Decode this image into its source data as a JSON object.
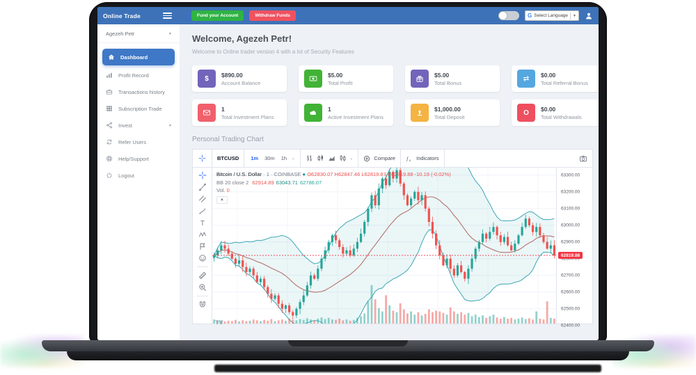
{
  "navbar": {
    "brand": "Online Trade",
    "fund_button": "Fund your Account",
    "withdraw_button": "Withdraw Funds",
    "language": {
      "logo": "G",
      "label": "Select Language"
    }
  },
  "sidebar": {
    "user": "Agezeh Petr",
    "items": [
      {
        "label": "Dashboard",
        "icon": "home",
        "active": true
      },
      {
        "label": "Profit Record",
        "icon": "chart-bars",
        "active": false
      },
      {
        "label": "Transactions history",
        "icon": "briefcase",
        "active": false
      },
      {
        "label": "Subscription Trade",
        "icon": "grid",
        "active": false
      },
      {
        "label": "Invest",
        "icon": "sitemap",
        "active": false,
        "has_submenu": true
      },
      {
        "label": "Refer Users",
        "icon": "recycle",
        "active": false
      },
      {
        "label": "Help/Support",
        "icon": "life-ring",
        "active": false
      },
      {
        "label": "Logout",
        "icon": "power",
        "active": false
      }
    ]
  },
  "main": {
    "welcome_title": "Welcome, Agezeh Petr!",
    "welcome_subtitle": "Welcome to Online trader version 4 with a lot of Security Features",
    "section_title": "Personal Trading Chart",
    "stat_cards": [
      {
        "icon": "dollar",
        "color": "#7264ba",
        "value": "$890.00",
        "label": "Account Balance"
      },
      {
        "icon": "cash",
        "color": "#41b336",
        "value": "$5.00",
        "label": "Total Profit"
      },
      {
        "icon": "gift",
        "color": "#7264ba",
        "value": "$5.00",
        "label": "Total Bonus"
      },
      {
        "icon": "exchange",
        "color": "#55a7e0",
        "value": "$0.00",
        "label": "Total Referral Bonus"
      },
      {
        "icon": "envelope",
        "color": "#f0606c",
        "value": "1",
        "label": "Total Investment Plans"
      },
      {
        "icon": "cloud",
        "color": "#41b336",
        "value": "1",
        "label": "Active Investment Plans"
      },
      {
        "icon": "upload",
        "color": "#f5b342",
        "value": "$1,000.00",
        "label": "Total Deposit"
      },
      {
        "icon": "circle-o",
        "color": "#ee4f5f",
        "value": "$0.00",
        "label": "Total Withdrawals"
      }
    ]
  },
  "chart": {
    "toolbar": {
      "symbol": "BTCUSD",
      "intervals": [
        "1m",
        "30m",
        "1h"
      ],
      "selected_interval": "1m",
      "compare_label": "Compare",
      "indicators_label": "Indicators"
    },
    "left_tools": [
      "crosshair",
      "trend-line",
      "parallel-channel",
      "brush",
      "text",
      "xabcd-pattern",
      "forecast",
      "emoji",
      "ruler",
      "zoom-in",
      "magnet"
    ],
    "style_icons": [
      "bars-style",
      "candles-style",
      "area-style",
      "hollow-candles-style"
    ],
    "legend": {
      "title": "Bitcoin / U.S. Dollar",
      "meta": "· 1 · COINBASE",
      "ohlc_tokens": [
        "O62830.07",
        "H62847.46",
        "L62819.87",
        "C62819.88",
        "-10.19 (-0.02%)"
      ],
      "bb_label": "BB 20 close 2",
      "bb_values": [
        {
          "value": "62914.89",
          "color": "#ef5350"
        },
        {
          "value": "63043.71",
          "color": "#1e8e85"
        },
        {
          "value": "62786.07",
          "color": "#26a69a"
        }
      ],
      "vol_label": "Vol.",
      "vol_value": "0"
    },
    "chart_data": {
      "type": "candlestick",
      "symbol": "BTCUSD",
      "exchange": "COINBASE",
      "last_price": "62819.88",
      "y_ticks": [
        "63300.00",
        "63200.00",
        "63100.00",
        "63000.00",
        "62900.00",
        "62800.00",
        "62700.00",
        "62600.00",
        "62500.00",
        "62400.00"
      ],
      "y_range": [
        62400,
        63300
      ],
      "up_color": "#26a69a",
      "down_color": "#ef5350",
      "band_color": "#3aa6b5",
      "basis_color": "#b5736b",
      "price_line_color": "#f23645",
      "closes": [
        62820,
        62850,
        62880,
        62860,
        62830,
        62800,
        62770,
        62790,
        62750,
        62720,
        62740,
        62700,
        62660,
        62680,
        62630,
        62590,
        62560,
        62580,
        62530,
        62500,
        62520,
        62480,
        62460,
        62500,
        62540,
        62580,
        62640,
        62700,
        62680,
        62740,
        62800,
        62850,
        62900,
        62940,
        62910,
        62870,
        62830,
        62850,
        62820,
        62860,
        62900,
        62950,
        63020,
        63100,
        63180,
        63120,
        63220,
        63280,
        63240,
        63320,
        63280,
        63330,
        63250,
        63180,
        63120,
        63160,
        63200,
        63150,
        63180,
        63100,
        63020,
        62950,
        62880,
        62820,
        62760,
        62800,
        62740,
        62700,
        62760,
        62720,
        62680,
        62740,
        62800,
        62860,
        62900,
        62950,
        62920,
        62960,
        62990,
        62940,
        62900,
        62930,
        62880,
        62850,
        62890,
        62940,
        62990,
        63040,
        63000,
        62960,
        62990,
        62940,
        62900,
        62860,
        62880,
        62820
      ],
      "volumes": [
        0.1,
        0.06,
        0.08,
        0.05,
        0.07,
        0.06,
        0.09,
        0.05,
        0.08,
        0.06,
        0.07,
        0.1,
        0.08,
        0.06,
        0.09,
        0.07,
        0.11,
        0.06,
        0.08,
        0.1,
        0.07,
        0.12,
        0.09,
        0.08,
        0.11,
        0.09,
        0.13,
        0.1,
        0.08,
        0.12,
        0.15,
        0.11,
        0.14,
        0.1,
        0.09,
        0.12,
        0.08,
        0.1,
        0.07,
        0.09,
        0.14,
        0.18,
        0.25,
        0.55,
        0.95,
        0.6,
        0.38,
        0.3,
        0.7,
        0.45,
        0.32,
        0.28,
        0.5,
        0.35,
        0.25,
        0.3,
        0.22,
        0.28,
        0.2,
        0.24,
        0.35,
        0.28,
        0.32,
        0.3,
        0.26,
        0.22,
        0.4,
        0.3,
        0.24,
        0.28,
        0.22,
        0.26,
        0.18,
        0.22,
        0.16,
        0.2,
        0.14,
        0.18,
        0.22,
        0.15,
        0.12,
        0.16,
        0.12,
        0.14,
        0.1,
        0.12,
        0.15,
        0.11,
        0.13,
        0.1,
        0.3,
        0.12,
        0.1,
        0.55,
        0.14,
        0.12
      ]
    }
  }
}
